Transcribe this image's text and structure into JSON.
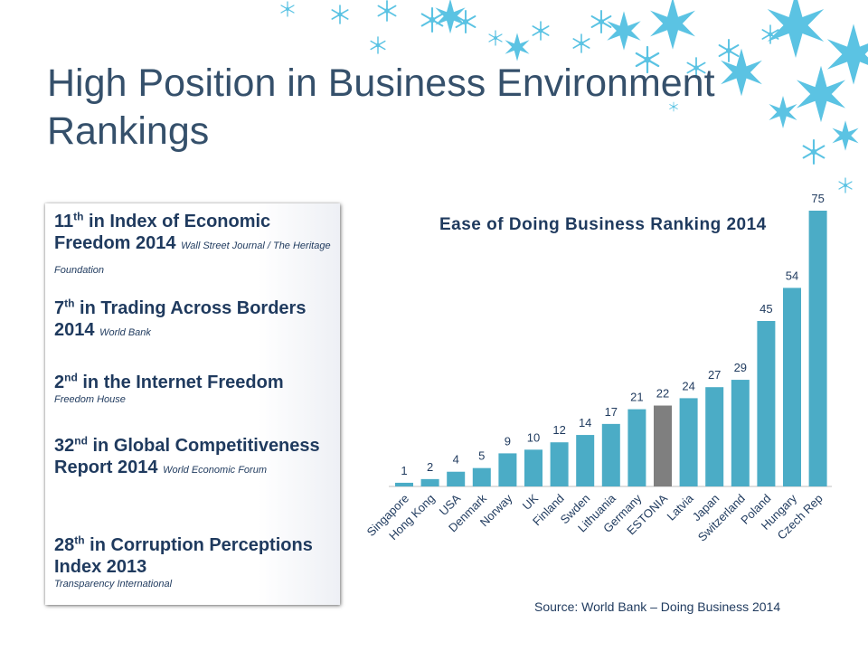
{
  "slide": {
    "title_line1": "High Position in Business Environment",
    "title_line2": "Rankings"
  },
  "rankings": [
    {
      "num": "11",
      "suffix": "th",
      "text": "in Index of Economic Freedom 2014",
      "source": "Wall Street Journal / The Heritage Foundation"
    },
    {
      "num": "7",
      "suffix": "th",
      "text": "in Trading Across Borders 2014",
      "source": "World Bank"
    },
    {
      "num": "2",
      "suffix": "nd",
      "text": "in the Internet Freedom",
      "source": "Freedom House"
    },
    {
      "num": "32",
      "suffix": "nd",
      "text": "in Global Competitiveness Report 2014",
      "source": "World Economic Forum"
    },
    {
      "num": "28",
      "suffix": "th",
      "text": "in Corruption Perceptions Index 2013",
      "source": "Transparency International"
    }
  ],
  "source_note": "Source: World Bank – Doing Business 2014",
  "colors": {
    "bar": "#4bacc6",
    "highlight_bar": "#7f7f7f",
    "title": "#35506b",
    "text": "#1f3a5e",
    "snow": "#5bc3e3"
  },
  "chart_data": {
    "type": "bar",
    "title": "Ease of Doing Business Ranking 2014",
    "categories": [
      "Singapore",
      "Hong Kong",
      "USA",
      "Denmark",
      "Norway",
      "UK",
      "Finland",
      "Swden",
      "Lithuania",
      "Germany",
      "ESTONIA",
      "Latvia",
      "Japan",
      "Switzerland",
      "Poland",
      "Hungary",
      "Czech Rep"
    ],
    "values": [
      1,
      2,
      4,
      5,
      9,
      10,
      12,
      14,
      17,
      21,
      22,
      24,
      27,
      29,
      45,
      54,
      75
    ],
    "highlight": "ESTONIA",
    "data_labels": true,
    "ylim": [
      0,
      75
    ],
    "grid": false,
    "legend": "none"
  }
}
